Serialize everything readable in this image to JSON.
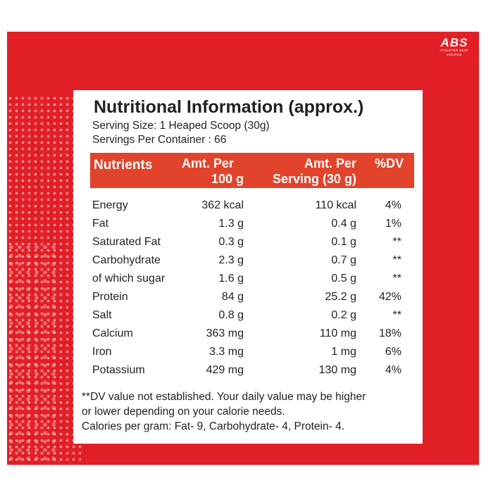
{
  "logo": {
    "mark": "ABS",
    "tagline": "ATHLETES BEST SOURCE"
  },
  "title": "Nutritional Information (approx.)",
  "serving_size": "Serving Size: 1 Heaped Scoop (30g)",
  "servings_per_container": "Servings Per Container : 66",
  "header": {
    "nutrients": "Nutrients",
    "per100_line1": "Amt. Per",
    "per100_line2": "100 g",
    "perserving_line1": "Amt. Per",
    "perserving_line2": "Serving (30 g)",
    "dv": "%DV"
  },
  "rows": [
    {
      "name": "Energy",
      "per100": "362 kcal",
      "serving": "110 kcal",
      "dv": "4%"
    },
    {
      "name": "Fat",
      "per100": "1.3 g",
      "serving": "0.4 g",
      "dv": "1%"
    },
    {
      "name": "Saturated Fat",
      "per100": "0.3 g",
      "serving": "0.1 g",
      "dv": "**"
    },
    {
      "name": "Carbohydrate",
      "per100": "2.3 g",
      "serving": "0.7 g",
      "dv": "**"
    },
    {
      "name": "of which sugar",
      "per100": "1.6 g",
      "serving": "0.5 g",
      "dv": "**"
    },
    {
      "name": "Protein",
      "per100": "84 g",
      "serving": "25.2 g",
      "dv": "42%"
    },
    {
      "name": "Salt",
      "per100": "0.8 g",
      "serving": "0.2 g",
      "dv": "**"
    },
    {
      "name": "Calcium",
      "per100": "363 mg",
      "serving": "110 mg",
      "dv": "18%"
    },
    {
      "name": "Iron",
      "per100": "3.3 mg",
      "serving": "1 mg",
      "dv": "6%"
    },
    {
      "name": "Potassium",
      "per100": "429 mg",
      "serving": "130 mg",
      "dv": "4%"
    }
  ],
  "footnote": {
    "line1": "**DV value not established. Your daily value may be higher",
    "line2": "or lower depending on your calorie needs.",
    "line3": "Calories per gram: Fat- 9, Carbohydrate- 4, Protein- 4."
  },
  "colors": {
    "background_red": "#e21f26",
    "header_red": "#e2432b",
    "text": "#231f20"
  }
}
